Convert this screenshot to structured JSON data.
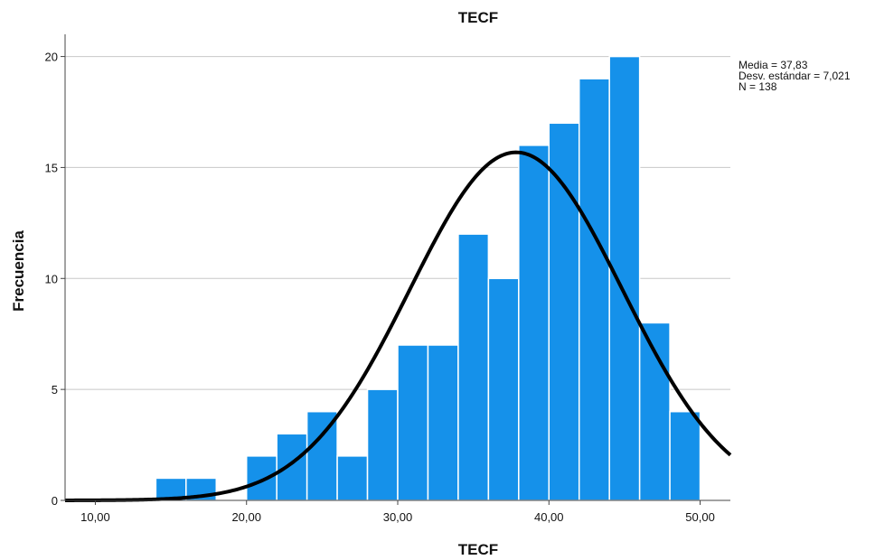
{
  "chart_data": {
    "type": "bar",
    "title": "TECF",
    "xlabel": "TECF",
    "ylabel": "Frecuencia",
    "bin_width": 2,
    "bins": [
      {
        "start": 14,
        "end": 16,
        "count": 1
      },
      {
        "start": 16,
        "end": 18,
        "count": 1
      },
      {
        "start": 18,
        "end": 20,
        "count": 0
      },
      {
        "start": 20,
        "end": 22,
        "count": 2
      },
      {
        "start": 22,
        "end": 24,
        "count": 3
      },
      {
        "start": 24,
        "end": 26,
        "count": 4
      },
      {
        "start": 26,
        "end": 28,
        "count": 2
      },
      {
        "start": 28,
        "end": 30,
        "count": 5
      },
      {
        "start": 30,
        "end": 32,
        "count": 7
      },
      {
        "start": 32,
        "end": 34,
        "count": 7
      },
      {
        "start": 34,
        "end": 36,
        "count": 12
      },
      {
        "start": 36,
        "end": 38,
        "count": 10
      },
      {
        "start": 38,
        "end": 40,
        "count": 16
      },
      {
        "start": 40,
        "end": 42,
        "count": 17
      },
      {
        "start": 42,
        "end": 44,
        "count": 19
      },
      {
        "start": 44,
        "end": 46,
        "count": 20
      },
      {
        "start": 46,
        "end": 48,
        "count": 8
      },
      {
        "start": 48,
        "end": 50,
        "count": 4
      }
    ],
    "xlim": [
      8,
      52
    ],
    "ylim": [
      0,
      21
    ],
    "x_ticks": [
      10,
      20,
      30,
      40,
      50
    ],
    "x_tick_labels": [
      "10,00",
      "20,00",
      "30,00",
      "40,00",
      "50,00"
    ],
    "y_ticks": [
      0,
      5,
      10,
      15,
      20
    ],
    "y_tick_labels": [
      "0",
      "5",
      "10",
      "15",
      "20"
    ],
    "grid": "horizontal",
    "normal_curve": {
      "mean": 37.83,
      "sd": 7.021,
      "n": 138
    },
    "stats": [
      "Media = 37,83",
      "Desv. estándar = 7,021",
      "N = 138"
    ],
    "stats_position": "top-right",
    "colors": {
      "bar": "#1591ea",
      "bar_edge": "#ffffff",
      "curve": "#000000",
      "grid": "#c8c8c8",
      "axis": "#444444"
    }
  }
}
